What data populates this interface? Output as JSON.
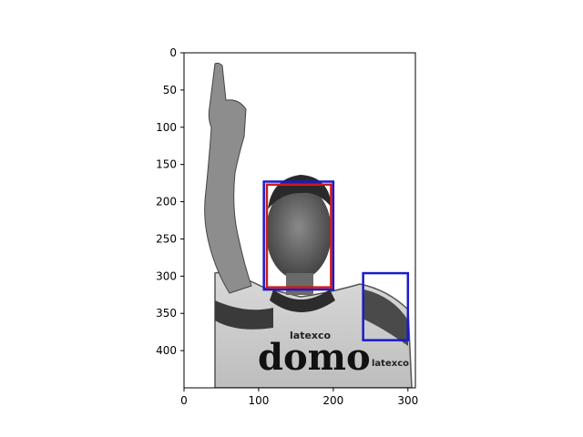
{
  "chart_data": {
    "type": "image",
    "image_description_label": "",
    "image_extent": {
      "width": 310,
      "height": 450
    },
    "x_ticks": [
      0,
      100,
      200,
      300
    ],
    "y_ticks": [
      0,
      50,
      100,
      150,
      200,
      250,
      300,
      350,
      400
    ],
    "xlim": [
      0,
      310
    ],
    "ylim": [
      450,
      0
    ],
    "boxes": [
      {
        "name": "",
        "color": "#1a1acc",
        "x0": 107,
        "y0": 173,
        "x1": 200,
        "y1": 318
      },
      {
        "name": "",
        "color": "#d11a1a",
        "x0": 111,
        "y0": 177,
        "x1": 197,
        "y1": 315
      },
      {
        "name": "",
        "color": "#1a1acc",
        "x0": 240,
        "y0": 296,
        "x1": 300,
        "y1": 386
      }
    ]
  }
}
